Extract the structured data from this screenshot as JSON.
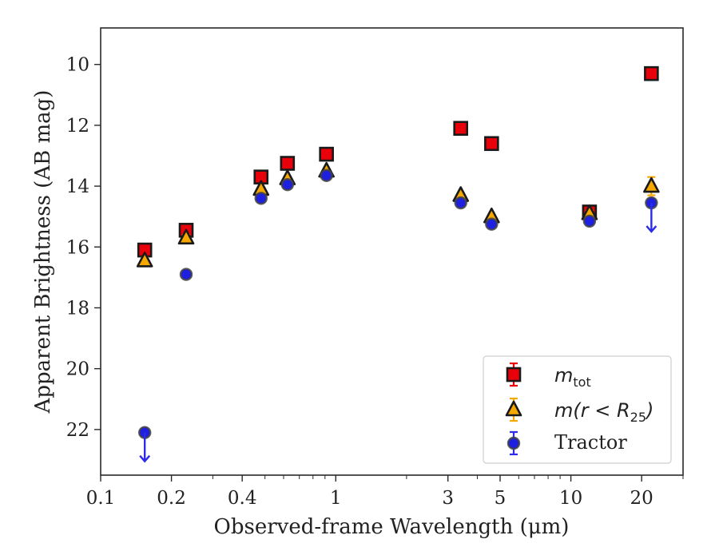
{
  "chart_data": {
    "type": "scatter",
    "title": "",
    "xlabel": "Observed-frame Wavelength (μm)",
    "ylabel": "Apparent Brightness (AB mag)",
    "xscale": "log",
    "xlim": [
      0.1,
      30
    ],
    "ylim": [
      23.5,
      8.8
    ],
    "y_inverted": true,
    "grid": false,
    "legend_position": "lower-right",
    "x_ticks": [
      {
        "value": 0.1,
        "label": "0.1"
      },
      {
        "value": 0.2,
        "label": "0.2"
      },
      {
        "value": 0.4,
        "label": "0.4"
      },
      {
        "value": 1,
        "label": "1"
      },
      {
        "value": 3,
        "label": "3"
      },
      {
        "value": 5,
        "label": "5"
      },
      {
        "value": 10,
        "label": "10"
      },
      {
        "value": 20,
        "label": "20"
      }
    ],
    "y_ticks": [
      {
        "value": 10,
        "label": "10"
      },
      {
        "value": 12,
        "label": "12"
      },
      {
        "value": 14,
        "label": "14"
      },
      {
        "value": 16,
        "label": "16"
      },
      {
        "value": 18,
        "label": "18"
      },
      {
        "value": 20,
        "label": "20"
      },
      {
        "value": 22,
        "label": "22"
      }
    ],
    "series": [
      {
        "name": "m_tot",
        "legend_main": "m",
        "legend_sub": "tot",
        "marker": "square",
        "fill": "#e8000b",
        "error_color": "#e8000b",
        "x": [
          0.154,
          0.231,
          0.481,
          0.623,
          0.913,
          3.4,
          4.6,
          12,
          22
        ],
        "y": [
          16.1,
          15.45,
          13.7,
          13.25,
          12.95,
          12.1,
          12.6,
          14.85,
          10.3
        ],
        "yerr": [
          0.12,
          0.1,
          0.05,
          0.05,
          0.05,
          0.05,
          0.05,
          0.1,
          0.1
        ]
      },
      {
        "name": "m(r < R_25)",
        "legend_main": "m(r < R",
        "legend_sub": "25",
        "legend_tail": ")",
        "marker": "triangle",
        "fill": "#f5a800",
        "error_color": "#f5a800",
        "x": [
          0.154,
          0.231,
          0.481,
          0.623,
          0.913,
          3.4,
          4.6,
          12,
          22
        ],
        "y": [
          16.45,
          15.7,
          14.1,
          13.75,
          13.5,
          14.3,
          15.0,
          14.9,
          14.0
        ],
        "yerr": [
          0.1,
          0.1,
          0.05,
          0.05,
          0.05,
          0.05,
          0.05,
          0.1,
          0.3
        ]
      },
      {
        "name": "Tractor",
        "legend_main": "Tractor",
        "marker": "circle",
        "fill": "#1f1fe0",
        "error_color": "#2b2be8",
        "x": [
          0.154,
          0.231,
          0.481,
          0.623,
          0.913,
          3.4,
          4.6,
          12,
          22
        ],
        "y": [
          22.1,
          16.9,
          14.4,
          13.95,
          13.65,
          14.55,
          15.25,
          15.15,
          14.55
        ],
        "yerr": [
          0.1,
          0.1,
          0.05,
          0.05,
          0.05,
          0.05,
          0.05,
          0.1,
          0.1
        ],
        "upper_limits": [
          0,
          8
        ]
      }
    ]
  }
}
